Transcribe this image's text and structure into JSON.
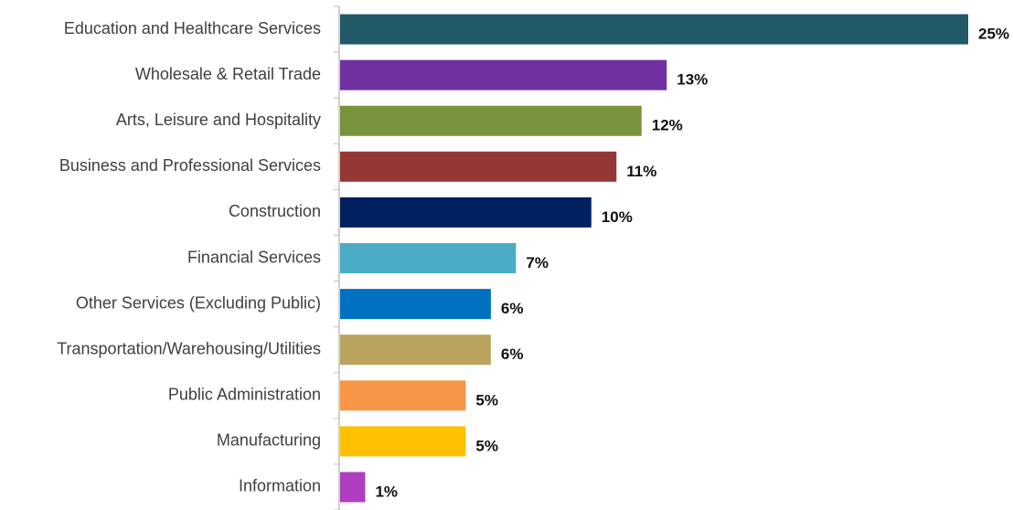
{
  "chart_data": {
    "type": "bar",
    "orientation": "horizontal",
    "title": "",
    "xlabel": "",
    "ylabel": "",
    "xlim": [
      0,
      25
    ],
    "grid": false,
    "legend": "none",
    "categories": [
      "Education and Healthcare Services",
      "Wholesale & Retail Trade",
      "Arts, Leisure and Hospitality",
      "Business and Professional Services",
      "Construction",
      "Financial Services",
      "Other Services (Excluding Public)",
      "Transportation/Warehousing/Utilities",
      "Public Administration",
      "Manufacturing",
      "Information"
    ],
    "values": [
      25,
      13,
      12,
      11,
      10,
      7,
      6,
      6,
      5,
      5,
      1
    ],
    "value_labels": [
      "25%",
      "13%",
      "12%",
      "11%",
      "10%",
      "7%",
      "6%",
      "6%",
      "5%",
      "5%",
      "1%"
    ],
    "colors": [
      "#215968",
      "#7030A0",
      "#77933C",
      "#953735",
      "#002060",
      "#4BACC6",
      "#0070C0",
      "#B9A35E",
      "#F79646",
      "#FFC000",
      "#B03EC0"
    ],
    "axis_color": "#bfbfbf"
  }
}
